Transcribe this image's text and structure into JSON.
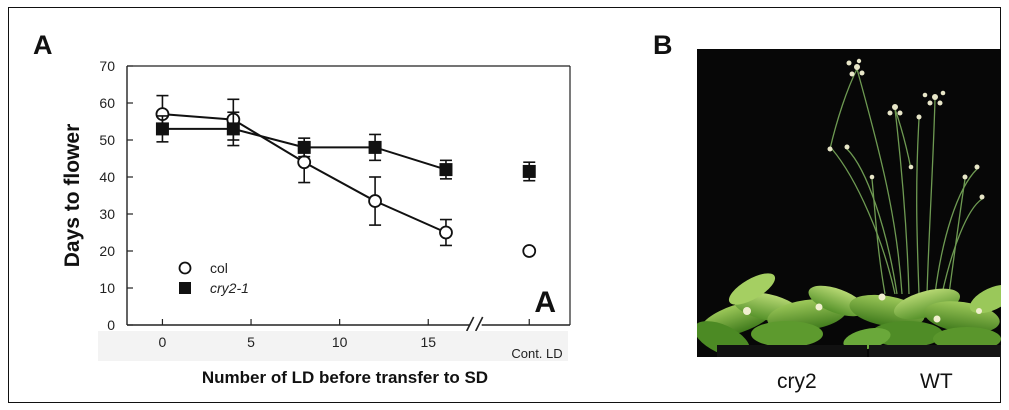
{
  "panel_a": {
    "letter": "A"
  },
  "panel_b": {
    "letter": "B",
    "labels": [
      "cry2",
      "WT"
    ]
  },
  "chart_data": {
    "type": "line",
    "ylabel": "Days to flower",
    "xlabel": "Number of LD before transfer to SD",
    "ylim": [
      0,
      70
    ],
    "xlim": [
      -2,
      23
    ],
    "y_ticks": [
      0,
      10,
      20,
      30,
      40,
      50,
      60,
      70
    ],
    "x_ticks": [
      0,
      5,
      10,
      15
    ],
    "axis_break_after": 17,
    "extra_x_label": "Cont. LD",
    "corner_label": "A",
    "grid": false,
    "legend_position": "bottom-left",
    "series": [
      {
        "name": "col",
        "marker": "open-circle",
        "x": [
          0,
          4,
          8,
          12,
          16
        ],
        "y": [
          57,
          55.5,
          44,
          33.5,
          25
        ],
        "err": [
          5,
          5.5,
          5.5,
          6.5,
          3.5
        ],
        "cont_ld": 20,
        "cont_ld_err": 0
      },
      {
        "name": "cry2-1",
        "name_style": "italic",
        "marker": "filled-square",
        "x": [
          0,
          4,
          8,
          12,
          16
        ],
        "y": [
          53,
          53,
          48,
          48,
          42
        ],
        "err": [
          3.5,
          4.5,
          2.5,
          3.5,
          2.5
        ],
        "cont_ld": 41.5,
        "cont_ld_err": 2.5
      }
    ]
  }
}
